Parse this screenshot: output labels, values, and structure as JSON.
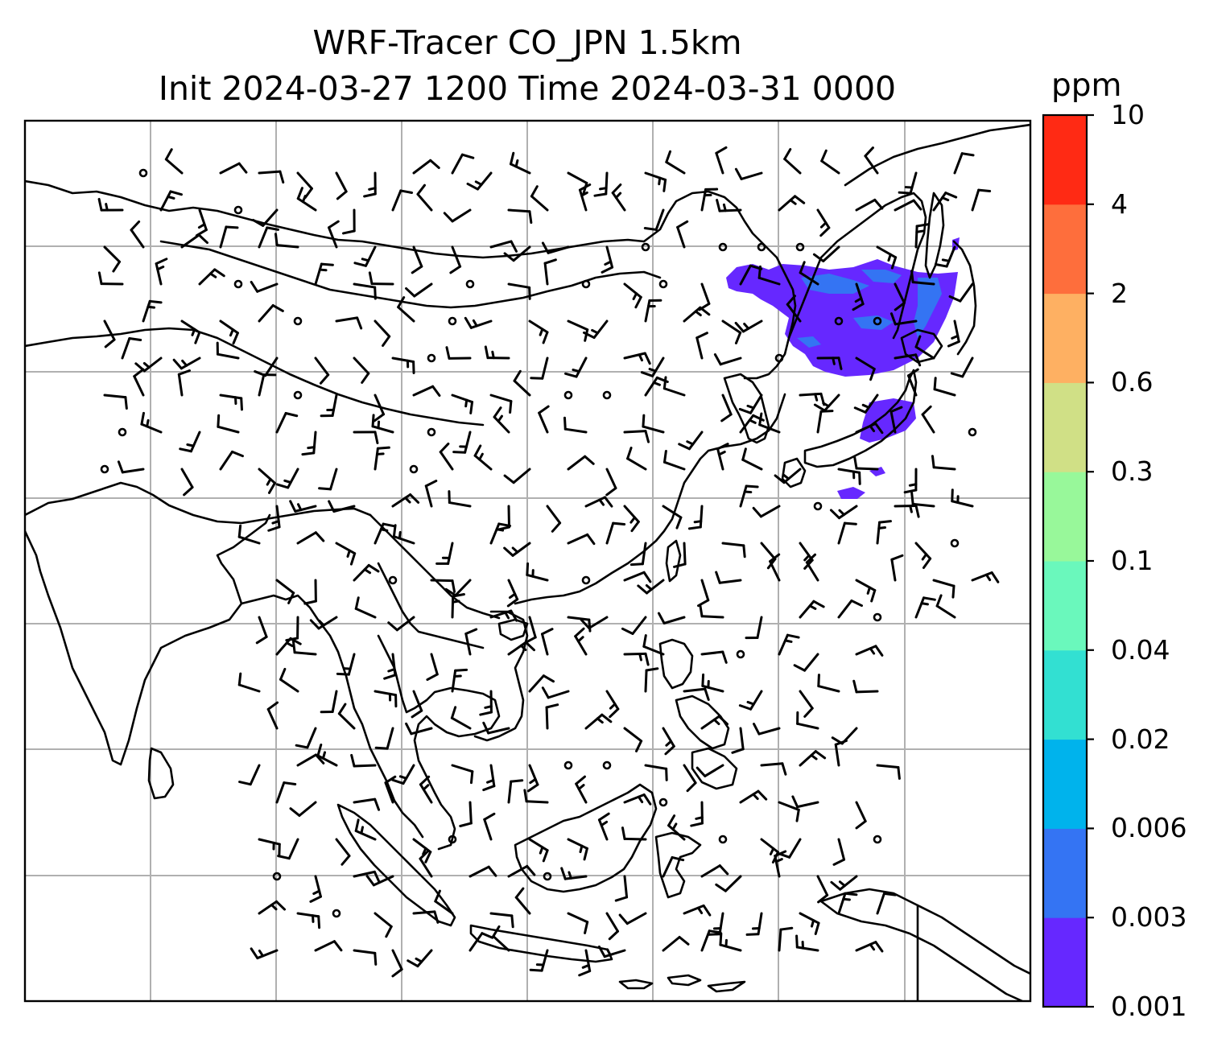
{
  "title": {
    "line1": "WRF-Tracer CO_JPN 1.5km",
    "line2": "Init 2024-03-27 1200 Time 2024-03-31 0000"
  },
  "colorbar": {
    "unit": "ppm",
    "levels": [
      "0.001",
      "0.003",
      "0.006",
      "0.02",
      "0.04",
      "0.1",
      "0.3",
      "0.6",
      "2",
      "4",
      "10"
    ],
    "colors": [
      "#6628ff",
      "#3474f3",
      "#00b3ec",
      "#32e0d2",
      "#6af8bc",
      "#98f89a",
      "#d0e086",
      "#feb062",
      "#fe6e3c",
      "#ff2a14"
    ]
  },
  "map": {
    "plume_color_primary": "#6628ff",
    "plume_color_secondary": "#3474f3",
    "gridline_color": "#b0b0b0",
    "coastline_color": "#000000"
  }
}
